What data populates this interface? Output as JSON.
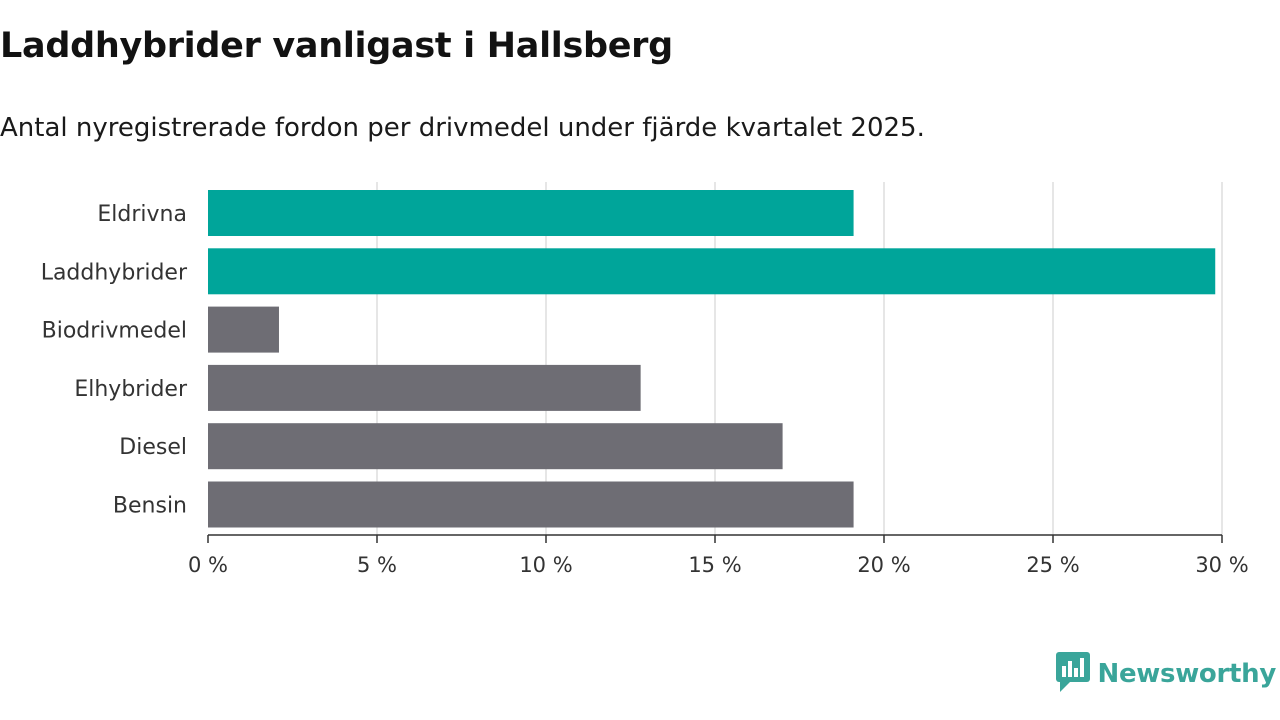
{
  "chart_data": {
    "type": "bar",
    "orientation": "horizontal",
    "title": "Laddhybrider vanligast i Hallsberg",
    "subtitle": "Antal nyregistrerade fordon per drivmedel under fjärde kvartalet 2025.",
    "categories": [
      "Eldrivna",
      "Laddhybrider",
      "Biodrivmedel",
      "Elhybrider",
      "Diesel",
      "Bensin"
    ],
    "values": [
      19.1,
      29.8,
      2.1,
      12.8,
      17.0,
      19.1
    ],
    "highlighted": [
      true,
      true,
      false,
      false,
      false,
      false
    ],
    "xlim": [
      0,
      30
    ],
    "xticks": [
      0,
      5,
      10,
      15,
      20,
      25,
      30
    ],
    "tick_suffix": " %",
    "xlabel": "",
    "ylabel": "",
    "grid": true,
    "colors": {
      "highlight": "#00a59a",
      "default": "#6e6d74",
      "grid": "#dddddd",
      "axis": "#333333"
    }
  },
  "brand": {
    "name": "Newsworthy",
    "icon": "newsworthy-logo-icon",
    "color": "#3aa59a"
  }
}
